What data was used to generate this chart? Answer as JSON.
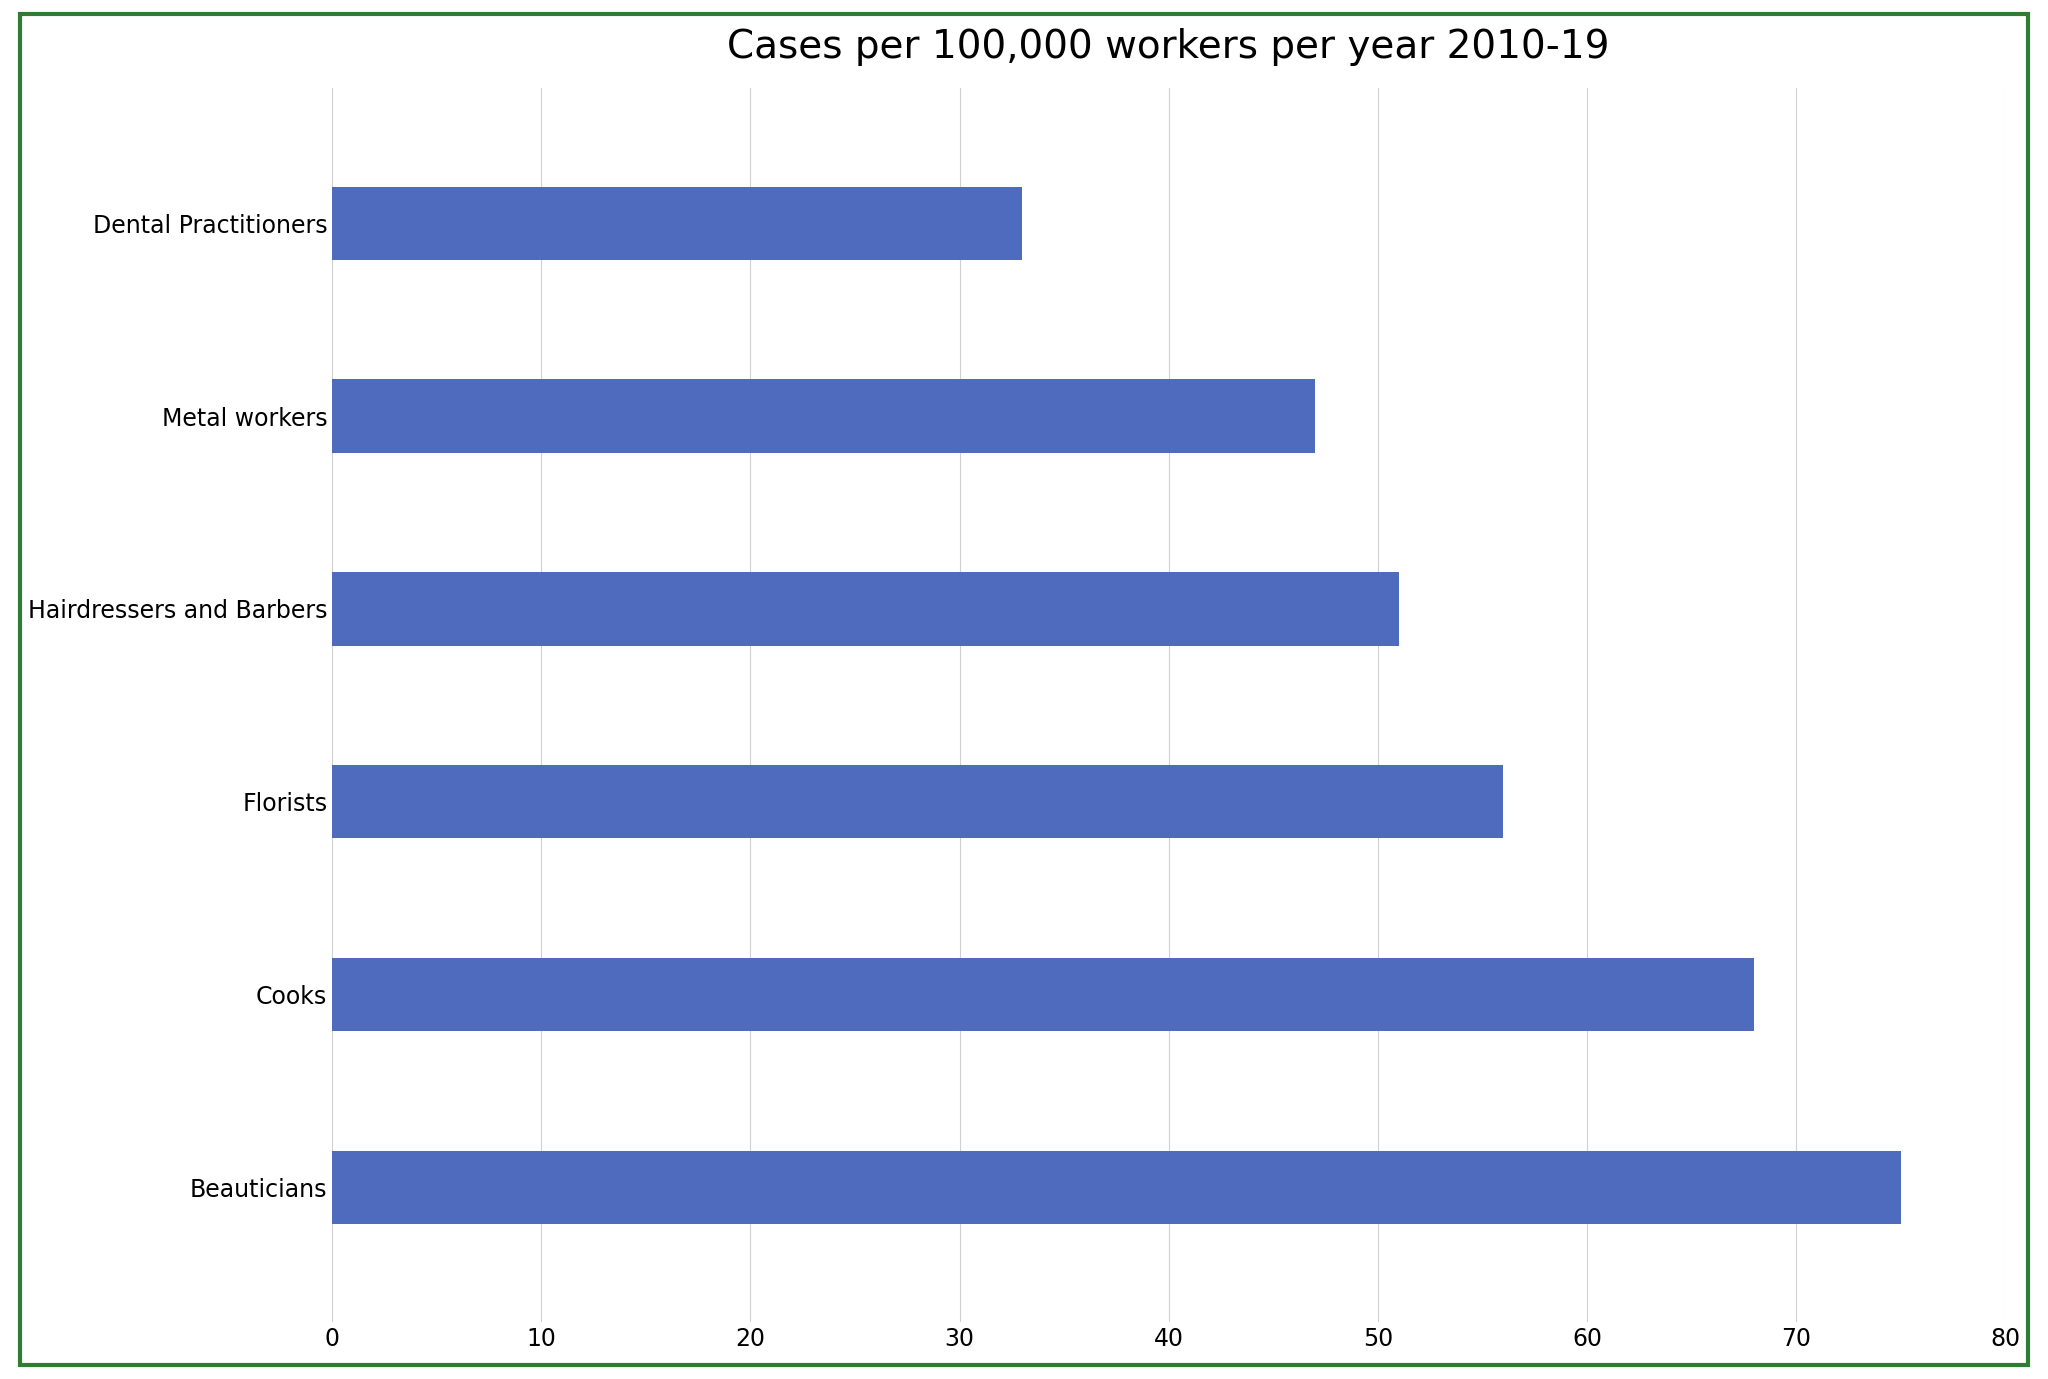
{
  "title": "Cases per 100,000 workers per year 2010-19",
  "categories": [
    "Beauticians",
    "Cooks",
    "Florists",
    "Hairdressers and Barbers",
    "Metal workers",
    "Dental Practitioners"
  ],
  "values": [
    75,
    68,
    56,
    51,
    47,
    33
  ],
  "bar_color": "#4F6BBE",
  "xlim": [
    0,
    80
  ],
  "xticks": [
    0,
    10,
    20,
    30,
    40,
    50,
    60,
    70,
    80
  ],
  "background_color": "#ffffff",
  "border_color": "#2E7D32",
  "title_fontsize": 28,
  "tick_fontsize": 17,
  "label_fontsize": 17,
  "bar_height": 0.38,
  "ylim_bottom": -0.7,
  "ylim_top": 5.7
}
